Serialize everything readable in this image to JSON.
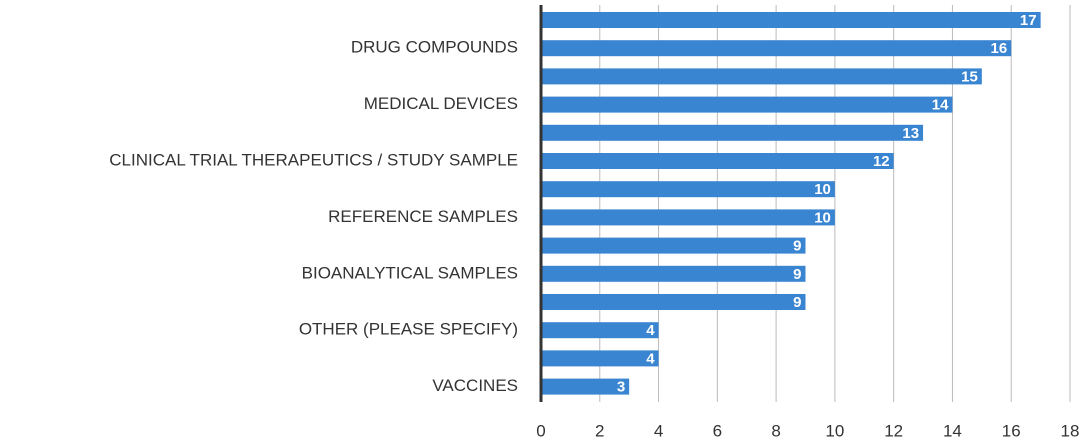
{
  "chart_data": {
    "type": "bar",
    "orientation": "horizontal",
    "categories": [
      null,
      "DRUG COMPOUNDS",
      null,
      "MEDICAL DEVICES",
      null,
      "CLINICAL TRIAL THERAPEUTICS / STUDY SAMPLE",
      null,
      "REFERENCE SAMPLES",
      null,
      "BIOANALYTICAL SAMPLES",
      null,
      "OTHER (PLEASE SPECIFY)",
      null,
      "VACCINES"
    ],
    "values": [
      17,
      16,
      15,
      14,
      13,
      12,
      10,
      10,
      9,
      9,
      9,
      4,
      4,
      3
    ],
    "color": "#3a85d2",
    "xlim": [
      0,
      18
    ],
    "xticks": [
      0,
      2,
      4,
      6,
      8,
      10,
      12,
      14,
      16,
      18
    ],
    "grid": true
  }
}
